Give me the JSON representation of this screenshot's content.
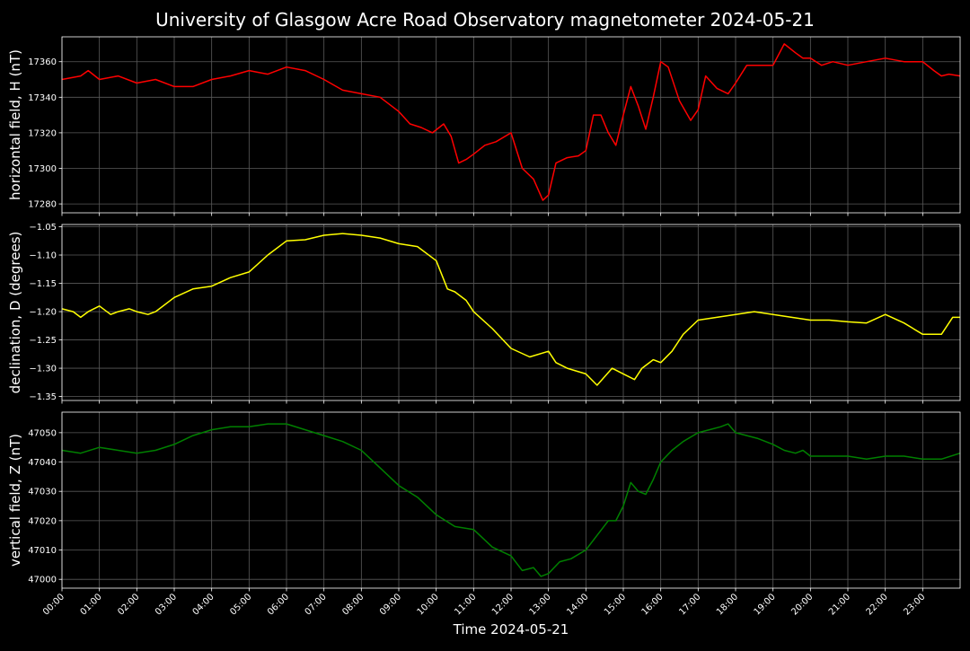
{
  "chart_data": {
    "type": "line",
    "title": "University of Glasgow Acre Road Observatory magnetometer 2024-05-21",
    "xlabel": "Time 2024-05-21",
    "x_ticks": [
      "00:00",
      "01:00",
      "02:00",
      "03:00",
      "04:00",
      "05:00",
      "06:00",
      "07:00",
      "08:00",
      "09:00",
      "10:00",
      "11:00",
      "12:00",
      "13:00",
      "14:00",
      "15:00",
      "16:00",
      "17:00",
      "18:00",
      "19:00",
      "20:00",
      "21:00",
      "22:00",
      "23:00"
    ],
    "xlim_hours": [
      0,
      24
    ],
    "grid": true,
    "panels": [
      {
        "ylabel": "horizontal field, H (nT)",
        "ylim": [
          17275,
          17374
        ],
        "yticks": [
          17280,
          17300,
          17320,
          17340,
          17360
        ],
        "ytick_labels": [
          "17280",
          "17300",
          "17320",
          "17340",
          "17360"
        ],
        "color": "#ff0000",
        "series": [
          {
            "x": [
              0.0,
              0.5,
              0.7,
              1.0,
              1.5,
              2.0,
              2.5,
              3.0,
              3.5,
              4.0,
              4.5,
              5.0,
              5.5,
              6.0,
              6.5,
              7.0,
              7.5,
              8.0,
              8.5,
              9.0,
              9.3,
              9.6,
              9.9,
              10.2,
              10.4,
              10.6,
              10.8,
              11.0,
              11.3,
              11.6,
              12.0,
              12.3,
              12.6,
              12.85,
              13.0,
              13.2,
              13.5,
              13.8,
              14.0,
              14.2,
              14.4,
              14.6,
              14.8,
              15.0,
              15.2,
              15.4,
              15.6,
              15.8,
              16.0,
              16.2,
              16.5,
              16.8,
              17.0,
              17.2,
              17.5,
              17.8,
              18.0,
              18.3,
              18.6,
              19.0,
              19.3,
              19.6,
              19.8,
              20.0,
              20.3,
              20.6,
              21.0,
              21.5,
              22.0,
              22.5,
              23.0,
              23.3,
              23.5,
              23.7,
              24.0
            ],
            "y": [
              17350,
              17352,
              17355,
              17350,
              17352,
              17348,
              17350,
              17346,
              17346,
              17350,
              17352,
              17355,
              17353,
              17357,
              17355,
              17350,
              17344,
              17342,
              17340,
              17332,
              17325,
              17323,
              17320,
              17325,
              17318,
              17303,
              17305,
              17308,
              17313,
              17315,
              17320,
              17300,
              17294,
              17282,
              17285,
              17303,
              17306,
              17307,
              17310,
              17330,
              17330,
              17320,
              17313,
              17330,
              17346,
              17335,
              17322,
              17340,
              17360,
              17357,
              17338,
              17327,
              17333,
              17352,
              17345,
              17342,
              17348,
              17358,
              17358,
              17358,
              17370,
              17365,
              17362,
              17362,
              17358,
              17360,
              17358,
              17360,
              17362,
              17360,
              17360,
              17355,
              17352,
              17353,
              17352
            ]
          }
        ]
      },
      {
        "ylabel": "declination, D (degrees)",
        "ylim": [
          -1.357,
          -1.046
        ],
        "yticks": [
          -1.35,
          -1.3,
          -1.25,
          -1.2,
          -1.15,
          -1.1,
          -1.05
        ],
        "ytick_labels": [
          "−1.35",
          "−1.30",
          "−1.25",
          "−1.20",
          "−1.15",
          "−1.10",
          "−1.05"
        ],
        "color": "#ffff00",
        "series": [
          {
            "x": [
              0.0,
              0.3,
              0.5,
              0.7,
              1.0,
              1.3,
              1.5,
              1.8,
              2.0,
              2.3,
              2.5,
              3.0,
              3.5,
              4.0,
              4.5,
              5.0,
              5.5,
              6.0,
              6.5,
              7.0,
              7.5,
              8.0,
              8.5,
              9.0,
              9.5,
              10.0,
              10.3,
              10.5,
              10.8,
              11.0,
              11.5,
              12.0,
              12.5,
              13.0,
              13.2,
              13.5,
              14.0,
              14.3,
              14.7,
              15.0,
              15.3,
              15.5,
              15.8,
              16.0,
              16.3,
              16.6,
              17.0,
              17.5,
              18.0,
              18.5,
              19.0,
              19.5,
              20.0,
              20.5,
              21.0,
              21.5,
              22.0,
              22.5,
              23.0,
              23.3,
              23.5,
              23.8,
              24.0
            ],
            "y": [
              -1.195,
              -1.2,
              -1.21,
              -1.2,
              -1.19,
              -1.205,
              -1.2,
              -1.195,
              -1.2,
              -1.205,
              -1.2,
              -1.175,
              -1.16,
              -1.155,
              -1.14,
              -1.13,
              -1.1,
              -1.075,
              -1.073,
              -1.065,
              -1.062,
              -1.065,
              -1.07,
              -1.08,
              -1.085,
              -1.11,
              -1.16,
              -1.165,
              -1.18,
              -1.2,
              -1.23,
              -1.265,
              -1.28,
              -1.27,
              -1.29,
              -1.3,
              -1.31,
              -1.33,
              -1.3,
              -1.31,
              -1.32,
              -1.3,
              -1.285,
              -1.29,
              -1.27,
              -1.24,
              -1.215,
              -1.21,
              -1.205,
              -1.2,
              -1.205,
              -1.21,
              -1.215,
              -1.215,
              -1.218,
              -1.22,
              -1.205,
              -1.22,
              -1.24,
              -1.24,
              -1.24,
              -1.21,
              -1.21
            ]
          }
        ]
      },
      {
        "ylabel": "vertical field, Z (nT)",
        "ylim": [
          46997,
          47057
        ],
        "yticks": [
          47000,
          47010,
          47020,
          47030,
          47040,
          47050
        ],
        "ytick_labels": [
          "47000",
          "47010",
          "47020",
          "47030",
          "47040",
          "47050"
        ],
        "color": "#008000",
        "series": [
          {
            "x": [
              0.0,
              0.5,
              1.0,
              1.5,
              2.0,
              2.5,
              3.0,
              3.5,
              4.0,
              4.5,
              5.0,
              5.5,
              6.0,
              6.5,
              7.0,
              7.5,
              8.0,
              8.5,
              9.0,
              9.5,
              10.0,
              10.5,
              11.0,
              11.5,
              12.0,
              12.3,
              12.6,
              12.8,
              13.0,
              13.3,
              13.6,
              14.0,
              14.3,
              14.6,
              14.8,
              15.0,
              15.2,
              15.4,
              15.6,
              15.8,
              16.0,
              16.3,
              16.6,
              17.0,
              17.3,
              17.6,
              17.8,
              18.0,
              18.3,
              18.6,
              19.0,
              19.3,
              19.6,
              19.8,
              20.0,
              20.5,
              21.0,
              21.5,
              22.0,
              22.5,
              23.0,
              23.5,
              24.0
            ],
            "y": [
              47044,
              47043,
              47045,
              47044,
              47043,
              47044,
              47046,
              47049,
              47051,
              47052,
              47052,
              47053,
              47053,
              47051,
              47049,
              47047,
              47044,
              47038,
              47032,
              47028,
              47022,
              47018,
              47017,
              47011,
              47008,
              47003,
              47004,
              47001,
              47002,
              47006,
              47007,
              47010,
              47015,
              47020,
              47020,
              47025,
              47033,
              47030,
              47029,
              47034,
              47040,
              47044,
              47047,
              47050,
              47051,
              47052,
              47053,
              47050,
              47049,
              47048,
              47046,
              47044,
              47043,
              47044,
              47042,
              47042,
              47042,
              47041,
              47042,
              47042,
              47041,
              47041,
              47043
            ]
          }
        ]
      }
    ]
  }
}
